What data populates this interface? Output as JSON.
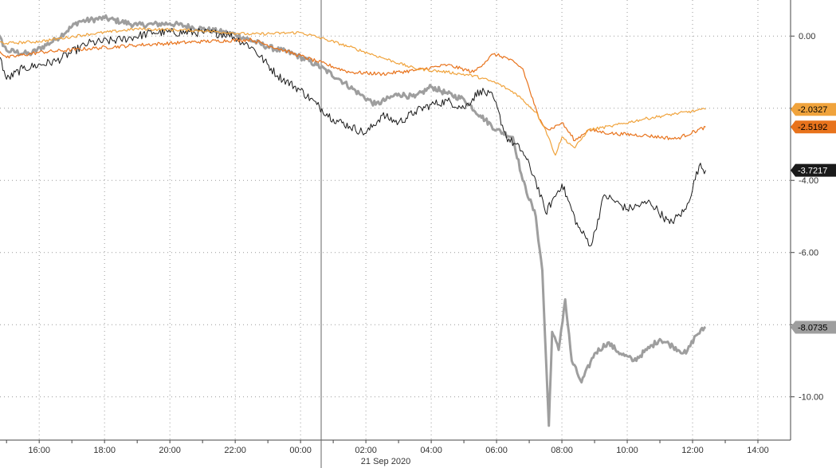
{
  "chart_data": {
    "type": "line",
    "title": "",
    "xlabel": "",
    "ylabel": "",
    "date_label": "21 Sep 2020",
    "x_ticks": [
      "16:00",
      "18:00",
      "20:00",
      "22:00",
      "00:00",
      "02:00",
      "04:00",
      "06:00",
      "08:00",
      "10:00",
      "12:00",
      "14:00"
    ],
    "x_range_hours": [
      -9.2,
      15.0
    ],
    "y_ticks": [
      "0.00",
      "-4.00",
      "-6.00",
      "-10.00"
    ],
    "y_tick_values": [
      0,
      -4,
      -6,
      -10
    ],
    "ylim": [
      -11.2,
      1.0
    ],
    "grid": true,
    "colors": {
      "black": "#1a1a1a",
      "gray": "#9e9e9e",
      "orange": "#e8731c",
      "yellow": "#f0a33c"
    },
    "series": [
      {
        "color_key": "yellow",
        "last_label": "-2.0327",
        "last_value": -2.0327,
        "points": [
          [
            -10,
            -0.05
          ],
          [
            -9,
            -0.2
          ],
          [
            -8,
            -0.15
          ],
          [
            -6.5,
            0.05
          ],
          [
            -5,
            0.2
          ],
          [
            -3,
            0.15
          ],
          [
            -1.5,
            0.05
          ],
          [
            0,
            0.1
          ],
          [
            0.8,
            -0.1
          ],
          [
            1.5,
            -0.3
          ],
          [
            2.5,
            -0.6
          ],
          [
            3.5,
            -0.9
          ],
          [
            4.5,
            -1.0
          ],
          [
            5.3,
            -1.1
          ],
          [
            6,
            -1.3
          ],
          [
            6.6,
            -1.6
          ],
          [
            7.2,
            -2.1
          ],
          [
            7.5,
            -2.6
          ],
          [
            7.8,
            -3.3
          ],
          [
            8,
            -2.8
          ],
          [
            8.4,
            -3.1
          ],
          [
            8.8,
            -2.6
          ],
          [
            9.5,
            -2.5
          ],
          [
            10.5,
            -2.3
          ],
          [
            11.5,
            -2.15
          ],
          [
            12.4,
            -2.03
          ]
        ]
      },
      {
        "color_key": "orange",
        "last_label": "-2.5192",
        "last_value": -2.5192,
        "points": [
          [
            -10,
            -0.3
          ],
          [
            -9.3,
            -0.32
          ],
          [
            -9,
            -0.6
          ],
          [
            -8,
            -0.45
          ],
          [
            -6.5,
            -0.35
          ],
          [
            -5,
            -0.25
          ],
          [
            -3,
            -0.15
          ],
          [
            -1.5,
            -0.1
          ],
          [
            -0.5,
            -0.4
          ],
          [
            0.5,
            -0.7
          ],
          [
            1.5,
            -1.0
          ],
          [
            2.5,
            -1.05
          ],
          [
            3.5,
            -0.95
          ],
          [
            4.5,
            -0.8
          ],
          [
            5.3,
            -1.0
          ],
          [
            5.9,
            -0.5
          ],
          [
            6.3,
            -0.6
          ],
          [
            6.8,
            -0.9
          ],
          [
            7.3,
            -2.3
          ],
          [
            7.6,
            -2.6
          ],
          [
            8,
            -2.4
          ],
          [
            8.4,
            -2.9
          ],
          [
            8.8,
            -2.6
          ],
          [
            9.5,
            -2.7
          ],
          [
            10.5,
            -2.75
          ],
          [
            11.5,
            -2.85
          ],
          [
            12.4,
            -2.52
          ]
        ]
      },
      {
        "color_key": "black",
        "last_label": "-3.7217",
        "last_value": -3.7217,
        "points": [
          [
            -10,
            -0.25
          ],
          [
            -9.3,
            -0.3
          ],
          [
            -9,
            -1.2
          ],
          [
            -8.5,
            -0.9
          ],
          [
            -7.5,
            -0.7
          ],
          [
            -6.5,
            -0.2
          ],
          [
            -5.5,
            -0.1
          ],
          [
            -4.5,
            0.1
          ],
          [
            -3,
            0.1
          ],
          [
            -2.2,
            0.05
          ],
          [
            -1.5,
            -0.3
          ],
          [
            -0.7,
            -1.1
          ],
          [
            0,
            -1.5
          ],
          [
            0.5,
            -1.9
          ],
          [
            1,
            -2.3
          ],
          [
            1.5,
            -2.5
          ],
          [
            2,
            -2.7
          ],
          [
            2.5,
            -2.2
          ],
          [
            3,
            -2.4
          ],
          [
            3.5,
            -2.1
          ],
          [
            4,
            -1.9
          ],
          [
            4.5,
            -1.8
          ],
          [
            5,
            -2.0
          ],
          [
            5.5,
            -1.5
          ],
          [
            5.9,
            -1.7
          ],
          [
            6.3,
            -2.8
          ],
          [
            6.8,
            -3.2
          ],
          [
            7.2,
            -4.0
          ],
          [
            7.5,
            -4.9
          ],
          [
            8,
            -4.1
          ],
          [
            8.5,
            -5.3
          ],
          [
            8.9,
            -5.8
          ],
          [
            9.3,
            -4.4
          ],
          [
            10,
            -4.8
          ],
          [
            10.7,
            -4.6
          ],
          [
            11.3,
            -5.2
          ],
          [
            11.8,
            -4.8
          ],
          [
            12.2,
            -3.6
          ],
          [
            12.4,
            -3.72
          ]
        ]
      },
      {
        "color_key": "gray",
        "last_label": "-8.0735",
        "last_value": -8.0735,
        "points": [
          [
            -10,
            -0.05
          ],
          [
            -9.3,
            0.1
          ],
          [
            -9,
            -0.4
          ],
          [
            -8.3,
            -0.5
          ],
          [
            -7.5,
            -0.1
          ],
          [
            -6.8,
            0.4
          ],
          [
            -6,
            0.5
          ],
          [
            -5,
            0.3
          ],
          [
            -4,
            0.35
          ],
          [
            -3,
            0.2
          ],
          [
            -2,
            0.05
          ],
          [
            -1,
            -0.3
          ],
          [
            -0.2,
            -0.5
          ],
          [
            0.5,
            -0.8
          ],
          [
            1.2,
            -1.2
          ],
          [
            1.8,
            -1.6
          ],
          [
            2.3,
            -1.9
          ],
          [
            3,
            -1.6
          ],
          [
            3.5,
            -1.7
          ],
          [
            4,
            -1.4
          ],
          [
            4.5,
            -1.6
          ],
          [
            5,
            -1.75
          ],
          [
            5.5,
            -2.2
          ],
          [
            6,
            -2.6
          ],
          [
            6.5,
            -2.8
          ],
          [
            6.8,
            -4.0
          ],
          [
            7.2,
            -5.0
          ],
          [
            7.4,
            -6.5
          ],
          [
            7.6,
            -10.8
          ],
          [
            7.7,
            -8.2
          ],
          [
            7.9,
            -8.7
          ],
          [
            8.1,
            -7.3
          ],
          [
            8.3,
            -9.0
          ],
          [
            8.6,
            -9.6
          ],
          [
            9,
            -8.8
          ],
          [
            9.4,
            -8.5
          ],
          [
            9.8,
            -8.8
          ],
          [
            10.2,
            -9.0
          ],
          [
            10.6,
            -8.7
          ],
          [
            11,
            -8.4
          ],
          [
            11.4,
            -8.6
          ],
          [
            11.8,
            -8.8
          ],
          [
            12.1,
            -8.3
          ],
          [
            12.4,
            -8.07
          ]
        ]
      }
    ]
  }
}
